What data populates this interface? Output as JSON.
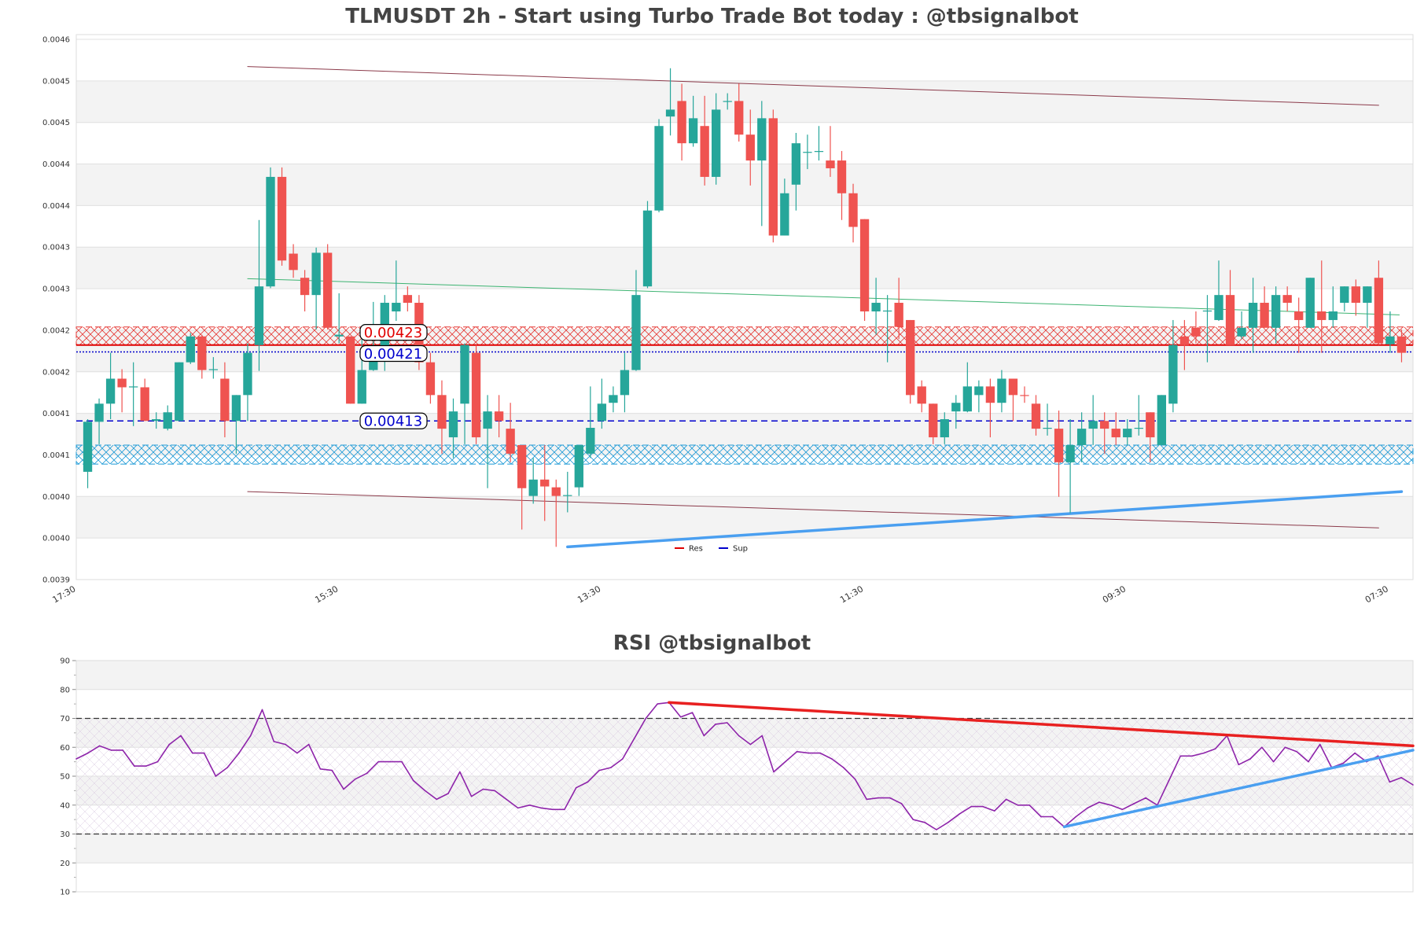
{
  "chart_data": [
    {
      "type": "candlestick",
      "title": "TLMUSDT 2h - Start using Turbo Trade Bot today : @tbsignalbot",
      "ylim": [
        0.003946,
        0.004578
      ],
      "y_tick_labels": [
        "0.0046",
        "0.0045",
        "0.0045",
        "0.0044",
        "0.0044",
        "0.0043",
        "0.0043",
        "0.0042",
        "0.0042",
        "0.0041",
        "0.0041",
        "0.0040",
        "0.0040",
        "0.0039"
      ],
      "x_tick_labels": [
        "17:30",
        "15:30",
        "13:30",
        "11:30",
        "09:30",
        "07:30"
      ],
      "grid": true,
      "colors": {
        "up": "#26a69a",
        "down": "#ef5350",
        "channel": "#8b3a4a",
        "midline": "#3cb371",
        "support_trend": "#4a9ff0",
        "resistance": "#e00000",
        "support": "#0000cc",
        "support_zone": "#1e9ad6"
      },
      "candles_ohlc": [
        [
          0.004071,
          0.004132,
          0.004052,
          0.004129
        ],
        [
          0.004129,
          0.004156,
          0.004103,
          0.00415
        ],
        [
          0.00415,
          0.004209,
          0.004132,
          0.004179
        ],
        [
          0.004179,
          0.00419,
          0.00414,
          0.004169
        ],
        [
          0.004169,
          0.004198,
          0.004124,
          0.00417
        ],
        [
          0.004169,
          0.004179,
          0.00413,
          0.00413
        ],
        [
          0.00413,
          0.00414,
          0.004121,
          0.004132
        ],
        [
          0.004121,
          0.004148,
          0.004119,
          0.00414
        ],
        [
          0.00413,
          0.004198,
          0.00413,
          0.004198
        ],
        [
          0.004198,
          0.004232,
          0.004196,
          0.004228
        ],
        [
          0.004228,
          0.00423,
          0.004179,
          0.004189
        ],
        [
          0.004189,
          0.004204,
          0.004179,
          0.00419
        ],
        [
          0.004179,
          0.004198,
          0.004111,
          0.00413
        ],
        [
          0.00413,
          0.00416,
          0.004092,
          0.00416
        ],
        [
          0.00416,
          0.00422,
          0.00413,
          0.004209
        ],
        [
          0.004218,
          0.004363,
          0.004188,
          0.004286
        ],
        [
          0.004286,
          0.004424,
          0.004284,
          0.004413
        ],
        [
          0.004413,
          0.004424,
          0.00431,
          0.004316
        ],
        [
          0.004324,
          0.004335,
          0.004296,
          0.004305
        ],
        [
          0.004296,
          0.004305,
          0.004257,
          0.004276
        ],
        [
          0.004276,
          0.004331,
          0.004236,
          0.004325
        ],
        [
          0.004325,
          0.004335,
          0.004236,
          0.004238
        ],
        [
          0.004228,
          0.004278,
          0.00422,
          0.00423
        ],
        [
          0.004228,
          0.004228,
          0.00415,
          0.00415
        ],
        [
          0.00415,
          0.004236,
          0.00415,
          0.004189
        ],
        [
          0.004189,
          0.004268,
          0.004188,
          0.004201
        ],
        [
          0.004204,
          0.004276,
          0.004188,
          0.004267
        ],
        [
          0.004257,
          0.004316,
          0.004246,
          0.004267
        ],
        [
          0.004276,
          0.004286,
          0.004257,
          0.004267
        ],
        [
          0.004267,
          0.004276,
          0.004189,
          0.004198
        ],
        [
          0.004198,
          0.004209,
          0.00415,
          0.00416
        ],
        [
          0.00416,
          0.004177,
          0.004092,
          0.004121
        ],
        [
          0.004111,
          0.004156,
          0.004087,
          0.004141
        ],
        [
          0.00415,
          0.00422,
          0.004103,
          0.004218
        ],
        [
          0.004209,
          0.004218,
          0.004103,
          0.004111
        ],
        [
          0.004121,
          0.00416,
          0.004052,
          0.004141
        ],
        [
          0.004141,
          0.00416,
          0.004111,
          0.00413
        ],
        [
          0.004121,
          0.004151,
          0.004082,
          0.004092
        ],
        [
          0.004102,
          0.004102,
          0.004004,
          0.004052
        ],
        [
          0.004043,
          0.004087,
          0.004034,
          0.004062
        ],
        [
          0.004062,
          0.004102,
          0.004014,
          0.004054
        ],
        [
          0.004053,
          0.004062,
          0.003984,
          0.004043
        ],
        [
          0.004044,
          0.004071,
          0.004024,
          0.004044
        ],
        [
          0.004053,
          0.004102,
          0.004043,
          0.004102
        ],
        [
          0.004092,
          0.00417,
          0.004087,
          0.004122
        ],
        [
          0.00413,
          0.004179,
          0.004121,
          0.00415
        ],
        [
          0.004151,
          0.00417,
          0.00414,
          0.00416
        ],
        [
          0.00416,
          0.004209,
          0.00414,
          0.004189
        ],
        [
          0.004189,
          0.004305,
          0.004188,
          0.004276
        ],
        [
          0.004286,
          0.004385,
          0.004284,
          0.004374
        ],
        [
          0.004374,
          0.00448,
          0.004372,
          0.004472
        ],
        [
          0.004483,
          0.004539,
          0.004461,
          0.004491
        ],
        [
          0.004501,
          0.004521,
          0.004432,
          0.004452
        ],
        [
          0.004452,
          0.004507,
          0.004448,
          0.004481
        ],
        [
          0.004472,
          0.004507,
          0.004403,
          0.004413
        ],
        [
          0.004413,
          0.00451,
          0.004404,
          0.004491
        ],
        [
          0.004501,
          0.00451,
          0.004491,
          0.004501
        ],
        [
          0.004501,
          0.004521,
          0.004454,
          0.004462
        ],
        [
          0.004462,
          0.004491,
          0.004403,
          0.004432
        ],
        [
          0.004432,
          0.004501,
          0.004356,
          0.004481
        ],
        [
          0.004481,
          0.004491,
          0.004337,
          0.004345
        ],
        [
          0.004345,
          0.004411,
          0.004345,
          0.004394
        ],
        [
          0.004404,
          0.004464,
          0.004374,
          0.004452
        ],
        [
          0.004442,
          0.004462,
          0.004422,
          0.004442
        ],
        [
          0.004442,
          0.004472,
          0.004432,
          0.004443
        ],
        [
          0.004432,
          0.004472,
          0.004413,
          0.004423
        ],
        [
          0.004432,
          0.004443,
          0.004363,
          0.004394
        ],
        [
          0.004394,
          0.004405,
          0.004337,
          0.004355
        ],
        [
          0.004364,
          0.004364,
          0.004246,
          0.004257
        ],
        [
          0.004257,
          0.004296,
          0.00423,
          0.004267
        ],
        [
          0.004257,
          0.004276,
          0.004198,
          0.004258
        ],
        [
          0.004267,
          0.004296,
          0.004225,
          0.004239
        ],
        [
          0.004247,
          0.004247,
          0.00415,
          0.00416
        ],
        [
          0.00417,
          0.004177,
          0.00414,
          0.00415
        ],
        [
          0.00415,
          0.00415,
          0.004103,
          0.004111
        ],
        [
          0.004111,
          0.00414,
          0.004103,
          0.004132
        ],
        [
          0.004141,
          0.00416,
          0.004121,
          0.004151
        ],
        [
          0.004141,
          0.004198,
          0.00414,
          0.00417
        ],
        [
          0.00416,
          0.004177,
          0.00414,
          0.00417
        ],
        [
          0.00417,
          0.004179,
          0.004111,
          0.004151
        ],
        [
          0.004151,
          0.004189,
          0.00414,
          0.004179
        ],
        [
          0.004179,
          0.004179,
          0.00413,
          0.00416
        ],
        [
          0.00416,
          0.00417,
          0.004151,
          0.004159
        ],
        [
          0.00415,
          0.00416,
          0.004113,
          0.004121
        ],
        [
          0.004121,
          0.00415,
          0.004113,
          0.004122
        ],
        [
          0.004121,
          0.004142,
          0.004042,
          0.004082
        ],
        [
          0.004082,
          0.004132,
          0.004023,
          0.004102
        ],
        [
          0.004102,
          0.00414,
          0.004082,
          0.004121
        ],
        [
          0.004121,
          0.00416,
          0.004102,
          0.00413
        ],
        [
          0.00413,
          0.00414,
          0.004092,
          0.004121
        ],
        [
          0.004121,
          0.00414,
          0.004102,
          0.004111
        ],
        [
          0.004111,
          0.004132,
          0.004102,
          0.004121
        ],
        [
          0.004121,
          0.00416,
          0.004113,
          0.004122
        ],
        [
          0.00414,
          0.00414,
          0.004082,
          0.004111
        ],
        [
          0.004102,
          0.00416,
          0.004102,
          0.00416
        ],
        [
          0.00415,
          0.004247,
          0.00414,
          0.004218
        ],
        [
          0.004228,
          0.004247,
          0.004189,
          0.004218
        ],
        [
          0.004238,
          0.004257,
          0.00422,
          0.004228
        ],
        [
          0.004257,
          0.004276,
          0.004198,
          0.004258
        ],
        [
          0.004247,
          0.004316,
          0.004246,
          0.004276
        ],
        [
          0.004276,
          0.004305,
          0.004218,
          0.004218
        ],
        [
          0.004228,
          0.004257,
          0.004225,
          0.004238
        ],
        [
          0.004238,
          0.004296,
          0.004209,
          0.004267
        ],
        [
          0.004267,
          0.004286,
          0.004238,
          0.004238
        ],
        [
          0.004238,
          0.004286,
          0.00422,
          0.004276
        ],
        [
          0.004276,
          0.004286,
          0.004257,
          0.004267
        ],
        [
          0.004257,
          0.004273,
          0.004209,
          0.004247
        ],
        [
          0.004238,
          0.004296,
          0.004238,
          0.004296
        ],
        [
          0.004257,
          0.004316,
          0.004209,
          0.004247
        ],
        [
          0.004247,
          0.004286,
          0.004238,
          0.004257
        ],
        [
          0.004267,
          0.004286,
          0.004257,
          0.004286
        ],
        [
          0.004286,
          0.004294,
          0.004252,
          0.004267
        ],
        [
          0.004267,
          0.004286,
          0.004238,
          0.004286
        ],
        [
          0.004296,
          0.004316,
          0.004218,
          0.00422
        ],
        [
          0.004219,
          0.004257,
          0.004209,
          0.004228
        ],
        [
          0.004228,
          0.004236,
          0.004198,
          0.004209
        ]
      ],
      "trend_lines": [
        {
          "role": "channel-upper",
          "bar": [
            15,
            114
          ],
          "price": [
            0.004541,
            0.004496
          ]
        },
        {
          "role": "channel-lower",
          "bar": [
            15,
            114
          ],
          "price": [
            0.004048,
            0.004006
          ]
        },
        {
          "role": "midline",
          "bar": [
            15,
            115.8
          ],
          "price": [
            0.004295,
            0.004253
          ]
        },
        {
          "role": "support-trend",
          "bar": [
            43,
            116
          ],
          "price": [
            0.003984,
            0.004048
          ]
        }
      ],
      "zones": {
        "resistance": [
          0.004218,
          0.004239
        ],
        "support": [
          0.00408,
          0.004102
        ]
      },
      "levels": [
        {
          "label": "0.00423",
          "price": 0.00423,
          "kind": "resistance",
          "style": "solid"
        },
        {
          "label": "0.00421",
          "price": 0.00421,
          "kind": "support",
          "style": "dotted"
        },
        {
          "label": "0.00413",
          "price": 0.00413,
          "kind": "support",
          "style": "dashed"
        }
      ],
      "legend": {
        "position": "bottom-center",
        "items": [
          {
            "name": "Res",
            "color": "#e00000"
          },
          {
            "name": "Sup",
            "color": "#0000cc"
          }
        ]
      }
    },
    {
      "type": "line",
      "title": "RSI @tbsignalbot",
      "ylim": [
        10,
        90
      ],
      "y_tick_labels": [
        "90",
        "80",
        "70",
        "60",
        "50",
        "40",
        "30",
        "20",
        "10"
      ],
      "overbought": 70,
      "oversold": 30,
      "grid": true,
      "colors": {
        "line": "#8e24aa",
        "resistance_trend": "#e82020",
        "support_trend": "#4a9ff0"
      },
      "values": [
        56,
        58,
        60.5,
        59,
        59,
        53.5,
        53.5,
        55,
        61,
        64,
        58,
        58,
        50,
        53,
        58,
        64,
        73,
        62,
        61,
        58,
        61,
        52.5,
        52,
        45.5,
        49,
        51,
        55,
        55,
        55,
        48.5,
        45,
        42,
        44,
        51.5,
        43,
        45.5,
        45,
        42,
        39,
        40,
        39,
        38.5,
        38.5,
        46,
        48,
        52,
        53,
        56,
        63,
        70,
        75,
        75.5,
        70.5,
        72,
        64,
        68,
        68.5,
        64,
        61,
        64,
        51.5,
        55,
        58.5,
        58,
        58,
        56,
        53,
        49,
        42,
        42.5,
        42.5,
        40.5,
        35,
        34,
        31.5,
        34,
        37,
        39.5,
        39.5,
        38,
        42,
        40,
        40,
        36,
        36,
        32.5,
        36,
        39,
        41,
        40,
        38.5,
        40.5,
        42.5,
        40,
        48.5,
        57,
        57,
        58,
        59.5,
        64,
        54,
        56,
        60,
        55,
        60,
        58.5,
        55,
        61,
        53,
        54.5,
        58,
        55,
        57,
        48,
        49.5,
        47
      ],
      "trend_lines": [
        {
          "role": "resistance",
          "point": [
            51,
            115
          ],
          "value": [
            75.5,
            60.5
          ]
        },
        {
          "role": "support",
          "point": [
            85,
            115
          ],
          "value": [
            32.5,
            59
          ]
        }
      ]
    }
  ]
}
